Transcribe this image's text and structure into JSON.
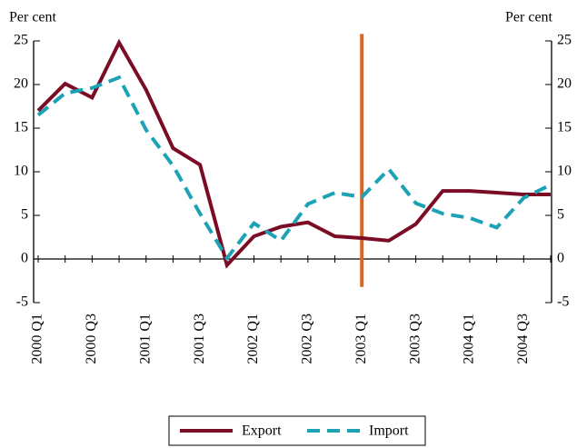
{
  "chart_data": {
    "type": "line",
    "y_label": "Per cent",
    "y2_label": "Per cent",
    "categories": [
      "2000 Q1",
      null,
      "2000 Q3",
      null,
      "2001 Q1",
      null,
      "2001 Q3",
      null,
      "2002 Q1",
      null,
      "2002 Q3",
      null,
      "2003 Q1",
      null,
      "2003 Q3",
      null,
      "2004 Q1",
      null,
      "2004 Q3",
      null
    ],
    "series": [
      {
        "name": "Export",
        "color": "#7b0c26",
        "dashed": false,
        "values": [
          17.0,
          20.1,
          18.5,
          24.8,
          19.4,
          12.7,
          10.8,
          -0.7,
          2.6,
          3.7,
          4.2,
          2.6,
          2.4,
          2.1,
          4.0,
          7.8,
          7.8,
          7.6,
          7.4,
          7.4
        ]
      },
      {
        "name": "Import",
        "color": "#1ba3b5",
        "dashed": true,
        "values": [
          16.5,
          19.0,
          19.6,
          20.8,
          14.8,
          10.7,
          5.2,
          0.1,
          4.1,
          2.1,
          6.3,
          7.6,
          7.1,
          10.3,
          6.4,
          5.2,
          4.7,
          3.6,
          7.0,
          8.5
        ]
      }
    ],
    "ylim": [
      -5,
      25
    ],
    "yticks": [
      -5,
      0,
      5,
      10,
      15,
      20,
      25
    ],
    "y2lim": [
      -5,
      25
    ],
    "y2ticks": [
      -5,
      0,
      5,
      10,
      15,
      20,
      25
    ],
    "vline": {
      "category": "2003 Q1",
      "y": [
        -3.2,
        25.8
      ],
      "color": "#d9661f"
    },
    "legend": "bottom"
  }
}
